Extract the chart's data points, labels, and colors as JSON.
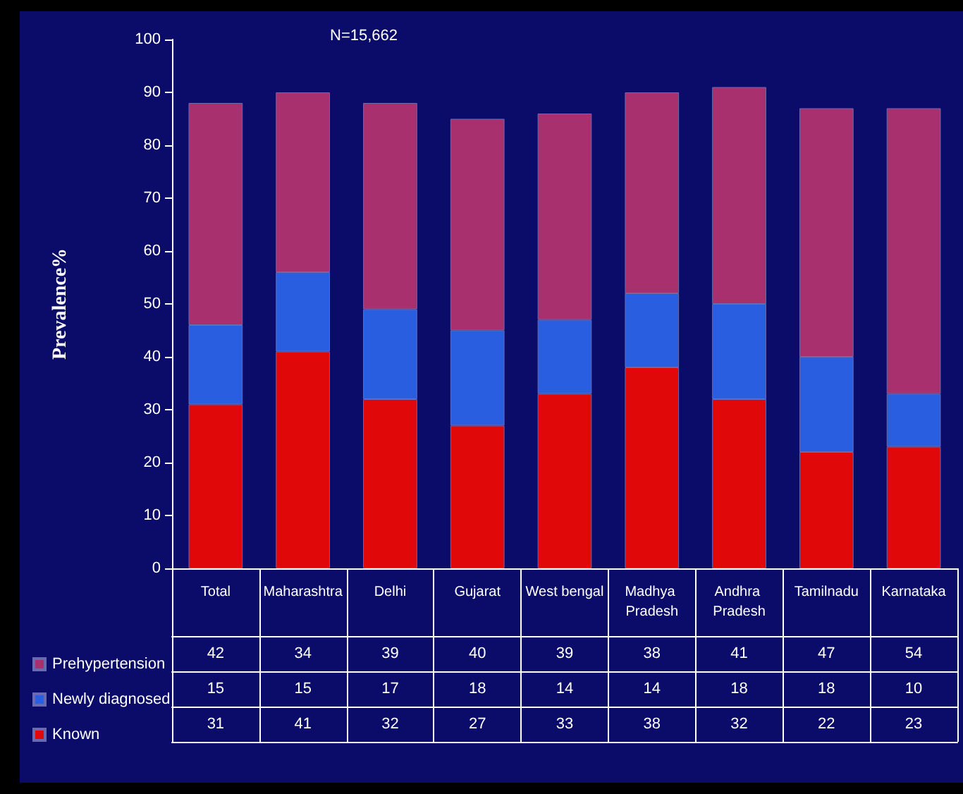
{
  "chart_data": {
    "type": "bar",
    "stacked": true,
    "ylabel": "Prevalence%",
    "annotations": [
      "N=15,662"
    ],
    "categories": [
      "Total",
      "Maharashtra",
      "Delhi",
      "Gujarat",
      "West bengal",
      "Madhya Pradesh",
      "Andhra Pradesh",
      "Tamilnadu",
      "Karnataka"
    ],
    "series": [
      {
        "name": "Known",
        "color": "#e00808",
        "values": [
          31,
          41,
          32,
          27,
          33,
          38,
          32,
          22,
          23
        ]
      },
      {
        "name": "Newly diagnosed",
        "color": "#2a5ee0",
        "values": [
          15,
          15,
          17,
          18,
          14,
          14,
          18,
          18,
          10
        ]
      },
      {
        "name": "Prehypertension",
        "color": "#a8306e",
        "values": [
          42,
          34,
          39,
          40,
          39,
          38,
          41,
          47,
          54
        ]
      }
    ],
    "ylim": [
      0,
      100
    ],
    "yticks": [
      0,
      10,
      20,
      30,
      40,
      50,
      60,
      70,
      80,
      90,
      100
    ],
    "grid": false,
    "legend": "bottom left",
    "data_labels": true
  }
}
